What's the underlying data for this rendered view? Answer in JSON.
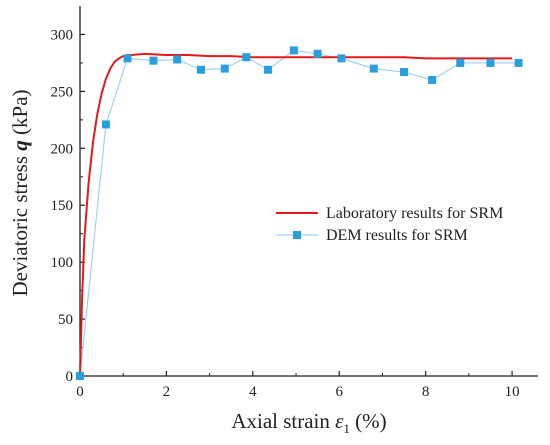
{
  "chart_data": {
    "type": "line",
    "title": "",
    "xlabel_parts": [
      "Axial strain ",
      "ε",
      "1",
      " (%)"
    ],
    "ylabel_parts": [
      "Deviatoric stress ",
      "q",
      " (kPa)"
    ],
    "xlim": [
      0,
      10.6
    ],
    "ylim": [
      0,
      325
    ],
    "x_ticks": [
      "0",
      "2",
      "4",
      "6",
      "8",
      "10"
    ],
    "y_ticks": [
      "0",
      "50",
      "100",
      "150",
      "200",
      "250",
      "300"
    ],
    "grid": false,
    "legend_position": "center-right",
    "series": [
      {
        "name": "Laboratory results for SRM",
        "style": "line",
        "color": "#e31a1c",
        "x": [
          0,
          0.05,
          0.1,
          0.2,
          0.3,
          0.4,
          0.5,
          0.6,
          0.7,
          0.8,
          0.9,
          1.0,
          1.1,
          1.2,
          1.5,
          2.0,
          2.5,
          3.0,
          3.5,
          4.0,
          4.5,
          5.0,
          5.5,
          6.0,
          6.5,
          7.0,
          7.5,
          8.0,
          8.5,
          9.0,
          9.5,
          10.0
        ],
        "y": [
          0,
          70,
          120,
          170,
          205,
          230,
          248,
          261,
          270,
          276,
          279,
          281,
          282,
          282,
          283,
          282,
          282,
          281,
          281,
          280,
          280,
          280,
          280,
          280,
          280,
          280,
          280,
          279,
          279,
          279,
          279,
          279
        ]
      },
      {
        "name": "DEM results for SRM",
        "style": "line-marker",
        "color": "#2a9fe0",
        "line_color": "#9fd3f0",
        "x": [
          0,
          0.6,
          1.1,
          1.7,
          2.25,
          2.8,
          3.35,
          3.85,
          4.35,
          4.95,
          5.5,
          6.05,
          6.8,
          7.5,
          8.15,
          8.8,
          9.5,
          10.15
        ],
        "y": [
          0,
          221,
          279,
          277,
          278,
          269,
          270,
          280,
          269,
          286,
          283,
          279,
          270,
          267,
          260,
          275,
          275,
          275
        ]
      }
    ]
  }
}
